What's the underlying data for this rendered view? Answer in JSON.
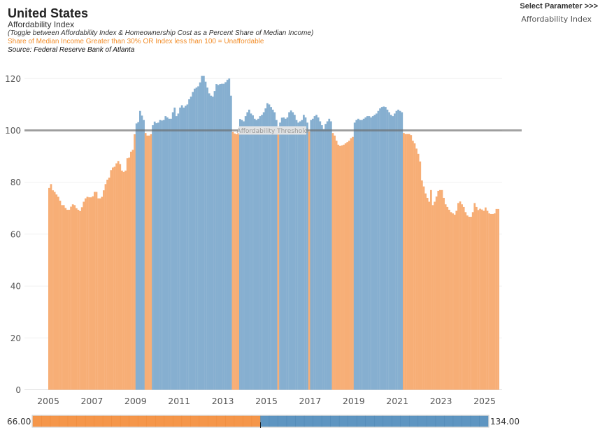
{
  "header": {
    "title": "United States",
    "subtitle": "Affordability Index",
    "toggle_note": "(Toggle between Affordability Index & Homeownership Cost as a Percent Share of Median Income)",
    "unaffordable_note": "Share of Median Income Greater than 30% OR Index less than 100  = Unaffordable",
    "source": "Source: Federal Reserve Bank of Atlanta"
  },
  "parameter": {
    "label": "Select Parameter >>>",
    "value": "Affordability Index"
  },
  "colors": {
    "unaffordable": "#f7ae76",
    "affordable": "#86afd0",
    "legend_unaffordable": "#f5964a",
    "legend_affordable": "#5e95c1",
    "threshold": "#999999"
  },
  "legend": {
    "min_label": "66.00",
    "max_label": "134.00",
    "min": 66,
    "max": 134,
    "split": 100
  },
  "chart_data": {
    "type": "bar",
    "title": "",
    "xlabel": "",
    "ylabel": "",
    "ylim": [
      0,
      125
    ],
    "yticks": [
      0,
      20,
      40,
      60,
      80,
      100,
      120
    ],
    "xticks": [
      "2005",
      "2007",
      "2009",
      "2011",
      "2013",
      "2015",
      "2017",
      "2019",
      "2021",
      "2023",
      "2025"
    ],
    "x_start": "2005-01",
    "frequency": "monthly",
    "threshold": {
      "value": 100,
      "label": "Affordability Threshold"
    },
    "grid": true,
    "values": [
      77.8,
      79.3,
      76.9,
      76.3,
      75.3,
      74.4,
      72.9,
      71.2,
      71.2,
      70.1,
      69.4,
      69.4,
      70.6,
      71.5,
      71.2,
      70,
      69.4,
      68.9,
      70.4,
      72.5,
      73.8,
      74.4,
      74.2,
      74.2,
      74.6,
      76.3,
      76.3,
      73.8,
      73.8,
      74.4,
      76.9,
      79.3,
      81,
      81.8,
      84.7,
      85.7,
      86,
      87.3,
      88.2,
      87,
      84.5,
      84,
      84.5,
      89.3,
      89.5,
      91.8,
      92.5,
      98.5,
      102.7,
      103.2,
      107.5,
      105.7,
      104,
      99,
      98,
      98,
      98.5,
      102,
      103.4,
      102.8,
      103,
      104,
      103.8,
      104,
      105.5,
      105,
      104.5,
      104.5,
      107,
      108.8,
      105.5,
      106.5,
      108.8,
      109.7,
      108.8,
      109.5,
      110,
      112,
      113,
      114.8,
      116.1,
      116.5,
      117,
      118.5,
      121,
      121,
      118.8,
      116.5,
      114.3,
      113.4,
      113,
      115.2,
      117.9,
      117.5,
      117.9,
      118,
      118,
      118.6,
      119.5,
      120,
      113.4,
      99.4,
      98.8,
      98.5,
      99,
      104.4,
      104,
      103.5,
      105.5,
      107,
      108,
      106.5,
      105.8,
      104.5,
      104,
      104.5,
      105.5,
      106,
      107,
      108.5,
      110.5,
      110,
      109,
      108,
      107,
      104,
      99.5,
      103,
      104.9,
      105,
      104.5,
      105,
      107,
      107.7,
      107,
      106,
      104,
      103,
      103.5,
      104,
      106,
      105,
      103,
      99.5,
      104,
      104.5,
      105.5,
      106,
      105,
      103.5,
      102,
      100.5,
      102.5,
      103.5,
      104.5,
      103.5,
      99,
      98,
      96,
      94.5,
      94,
      94.2,
      94.5,
      95,
      95.5,
      96,
      97,
      97.5,
      103,
      104,
      104.5,
      104,
      104,
      104.5,
      105,
      105.5,
      105.5,
      105,
      105.5,
      106,
      106.5,
      107.5,
      108.5,
      109,
      109.2,
      109,
      108,
      107,
      106,
      105.5,
      106.5,
      107.5,
      108,
      107.5,
      107,
      99,
      98.6,
      98.6,
      98.6,
      98.2,
      96,
      95,
      93,
      91,
      88,
      80.7,
      78.4,
      75.7,
      74,
      72.5,
      77,
      71.2,
      72.5,
      74.5,
      76.7,
      77,
      77,
      74,
      71.5,
      70.5,
      69.4,
      68.5,
      68,
      67.5,
      69,
      72,
      72.6,
      71.5,
      70.5,
      68.5,
      67.2,
      66.7,
      66.7,
      68.5,
      72,
      70.5,
      69.3,
      69.8,
      69.5,
      69,
      70.3,
      69,
      68,
      67.8,
      67.8,
      68,
      69.7,
      69.7
    ]
  }
}
